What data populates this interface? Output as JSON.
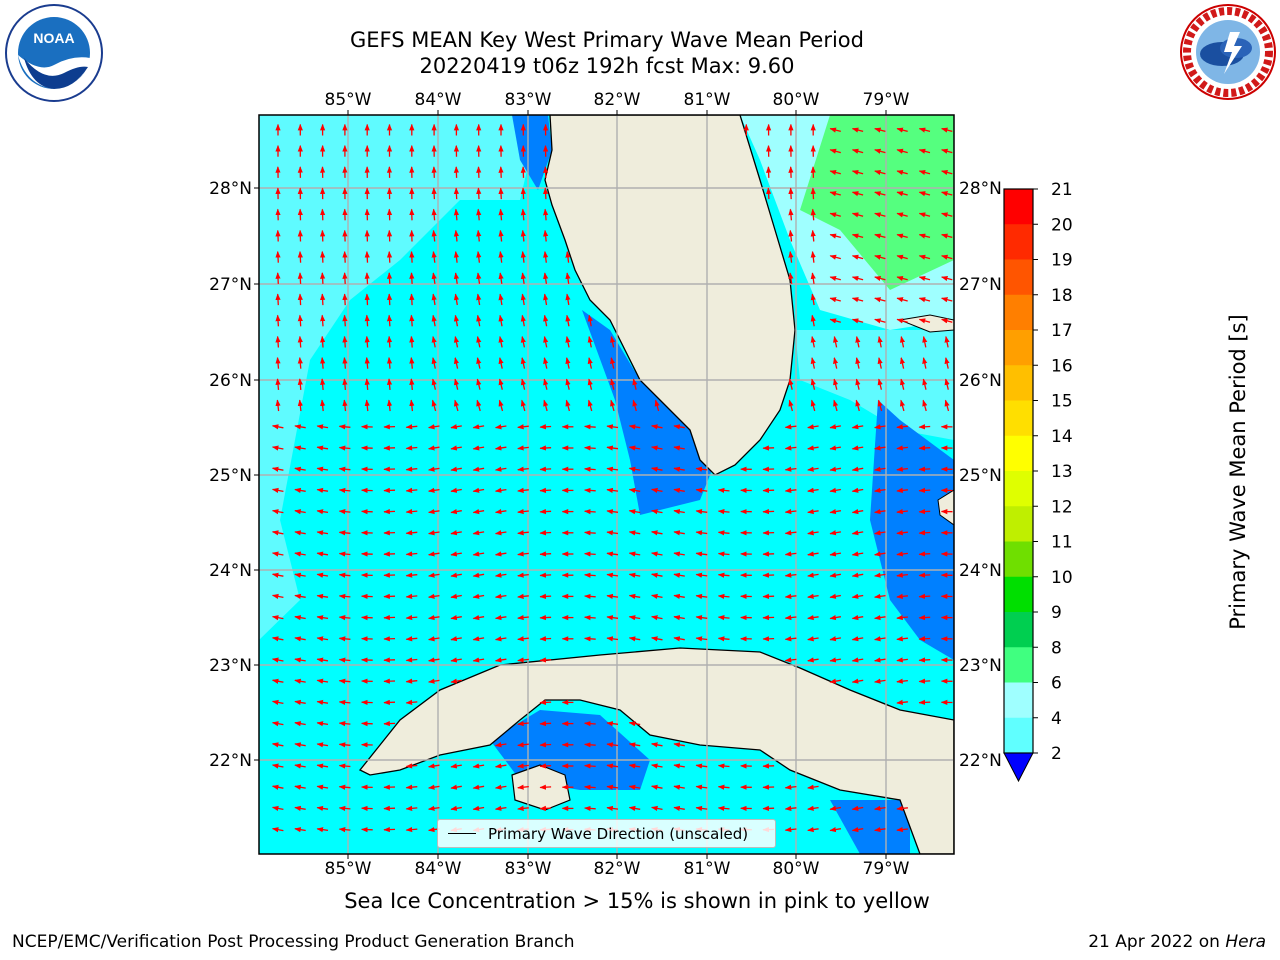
{
  "title": {
    "line1": "GEFS MEAN Key West Primary Wave Mean Period",
    "line2": "20220419 t06z 192h fcst   Max: 9.60"
  },
  "logos": {
    "left": "NOAA",
    "right": "NATIONAL WEATHER SERVICE"
  },
  "longitude_labels": [
    "85°W",
    "84°W",
    "83°W",
    "82°W",
    "81°W",
    "80°W",
    "79°W"
  ],
  "latitude_labels": [
    "28°N",
    "27°N",
    "26°N",
    "25°N",
    "24°N",
    "23°N",
    "22°N"
  ],
  "colorbar": {
    "title": "Primary Wave Mean Period [s]",
    "ticks": [
      "21",
      "20",
      "19",
      "18",
      "17",
      "16",
      "15",
      "14",
      "13",
      "12",
      "11",
      "10",
      "9",
      "8",
      "6",
      "4",
      "2"
    ],
    "colors": [
      "#ff0000",
      "#ff2a00",
      "#ff5500",
      "#ff7f00",
      "#ff9f00",
      "#ffbf00",
      "#ffdf00",
      "#ffff00",
      "#dfff00",
      "#bfef00",
      "#6fdf00",
      "#00df00",
      "#00cf50",
      "#40ff80",
      "#9fffff",
      "#60ffff",
      "#00ffff",
      "#0080ff",
      "#0000ff"
    ]
  },
  "legend": {
    "label": "Primary Wave Direction (unscaled)"
  },
  "caption": "Sea Ice Concentration > 15% is shown in pink to yellow",
  "footer": {
    "left": "NCEP/EMC/Verification Post Processing Product Generation Branch",
    "right_prefix": "21 Apr 2022 on ",
    "right_host": "Hera"
  },
  "colors": {
    "ocean_main": "#00ffff",
    "ocean_light": "#5ffbff",
    "ocean_dark": "#0080ff",
    "green": "#55ff7f",
    "land": "#efeddc",
    "arrow": "#ff0000"
  }
}
